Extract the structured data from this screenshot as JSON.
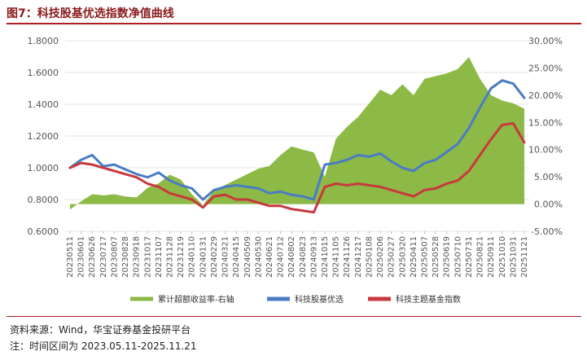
{
  "figure": {
    "title": "图7：科技股基优选指数净值曲线",
    "source": "资料来源：Wind，华宝证券基金投研平台",
    "note": "注：时间区间为 2023.05.11-2025.11.21"
  },
  "colors": {
    "excess": "#8db946",
    "fund": "#4a7cc4",
    "index": "#c8393d",
    "title": "#8a1a1a",
    "rule": "#b01e23"
  },
  "chart_data": {
    "type": "line",
    "title": "",
    "xlabel": "",
    "ylabel": "",
    "y_left": {
      "lim": [
        0.6,
        1.8
      ],
      "ticks": [
        "0.6000",
        "0.8000",
        "1.0000",
        "1.2000",
        "1.4000",
        "1.6000",
        "1.8000"
      ]
    },
    "y_right": {
      "lim": [
        -0.05,
        0.3
      ],
      "ticks": [
        "-5.00%",
        "0.00%",
        "5.00%",
        "10.00%",
        "15.00%",
        "20.00%",
        "25.00%",
        "30.00%"
      ]
    },
    "x_tick_labels": [
      "20230511",
      "20230601",
      "20230626",
      "20230717",
      "20230807",
      "20230828",
      "20230918",
      "20231017",
      "20231107",
      "20231128",
      "20231219",
      "20240110",
      "20240131",
      "20240229",
      "20240321",
      "20240415",
      "20240509",
      "20240530",
      "20240621",
      "20240712",
      "20240802",
      "20240823",
      "20240913",
      "20241015",
      "20241105",
      "20241126",
      "20241217",
      "20250108",
      "20250206",
      "20250227",
      "20250320",
      "20250411",
      "20250507",
      "20250528",
      "20250619",
      "20250710",
      "20250731",
      "20250821",
      "20250911",
      "20251010",
      "20251031",
      "20251121"
    ],
    "legend_position": "bottom",
    "series": [
      {
        "name": "累计超额收益率-右轴",
        "axis": "right",
        "kind": "area",
        "values": [
          -0.01,
          0.005,
          0.018,
          0.016,
          0.018,
          0.014,
          0.012,
          0.03,
          0.038,
          0.054,
          0.045,
          0.018,
          -0.002,
          0.025,
          0.035,
          0.045,
          0.055,
          0.065,
          0.07,
          0.09,
          0.106,
          0.1,
          0.095,
          0.05,
          0.12,
          0.142,
          0.16,
          0.185,
          0.21,
          0.2,
          0.22,
          0.2,
          0.23,
          0.235,
          0.24,
          0.248,
          0.27,
          0.23,
          0.2,
          0.19,
          0.185,
          0.175
        ]
      },
      {
        "name": "科技股基优选",
        "axis": "left",
        "kind": "line",
        "values": [
          1.0,
          1.05,
          1.08,
          1.01,
          1.02,
          0.99,
          0.96,
          0.94,
          0.97,
          0.92,
          0.89,
          0.87,
          0.8,
          0.86,
          0.88,
          0.89,
          0.88,
          0.87,
          0.84,
          0.85,
          0.83,
          0.82,
          0.8,
          1.02,
          1.03,
          1.05,
          1.08,
          1.07,
          1.09,
          1.04,
          1.0,
          0.98,
          1.03,
          1.05,
          1.1,
          1.15,
          1.25,
          1.38,
          1.5,
          1.55,
          1.53,
          1.44
        ]
      },
      {
        "name": "科技主题基金指数",
        "axis": "left",
        "kind": "line",
        "values": [
          1.0,
          1.03,
          1.02,
          1.0,
          0.98,
          0.96,
          0.94,
          0.9,
          0.88,
          0.84,
          0.82,
          0.8,
          0.75,
          0.82,
          0.83,
          0.8,
          0.8,
          0.78,
          0.76,
          0.76,
          0.74,
          0.73,
          0.72,
          0.88,
          0.9,
          0.89,
          0.9,
          0.89,
          0.88,
          0.86,
          0.84,
          0.82,
          0.86,
          0.87,
          0.9,
          0.92,
          0.98,
          1.08,
          1.18,
          1.27,
          1.28,
          1.16
        ]
      }
    ]
  }
}
